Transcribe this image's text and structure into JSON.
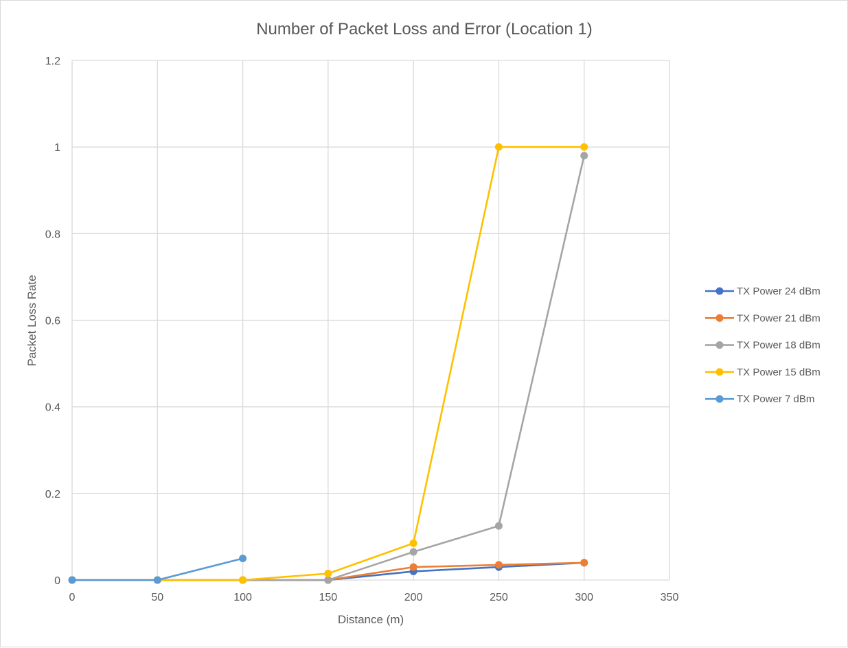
{
  "chart_data": {
    "type": "line",
    "title": "Number of Packet Loss and Error (Location 1)",
    "xlabel": "Distance (m)",
    "ylabel": "Packet Loss Rate",
    "xlim": [
      0,
      350
    ],
    "ylim": [
      0,
      1.2
    ],
    "x_ticks": [
      "0",
      "50",
      "100",
      "150",
      "200",
      "250",
      "300",
      "350"
    ],
    "y_ticks": [
      "0",
      "0.2",
      "0.4",
      "0.6",
      "0.8",
      "1",
      "1.2"
    ],
    "grid": true,
    "legend_position": "right",
    "series": [
      {
        "name": "TX Power 24 dBm",
        "color": "#4472c4",
        "x": [
          0,
          50,
          100,
          150,
          200,
          250,
          300
        ],
        "y": [
          0,
          0,
          0,
          0,
          0.02,
          0.03,
          0.04
        ]
      },
      {
        "name": "TX Power 21 dBm",
        "color": "#ed7d31",
        "x": [
          0,
          50,
          100,
          150,
          200,
          250,
          300
        ],
        "y": [
          0,
          0,
          0,
          0,
          0.03,
          0.035,
          0.04
        ]
      },
      {
        "name": "TX Power 18 dBm",
        "color": "#a5a5a5",
        "x": [
          0,
          50,
          100,
          150,
          200,
          250,
          300
        ],
        "y": [
          0,
          0,
          0,
          0,
          0.065,
          0.125,
          0.98
        ]
      },
      {
        "name": "TX Power 15 dBm",
        "color": "#ffc000",
        "x": [
          0,
          50,
          100,
          150,
          200,
          250,
          300
        ],
        "y": [
          0,
          0,
          0,
          0.015,
          0.085,
          1,
          1
        ]
      },
      {
        "name": "TX Power 7 dBm",
        "color": "#5b9bd5",
        "x": [
          0,
          50,
          100
        ],
        "y": [
          0,
          0,
          0.05
        ]
      }
    ]
  }
}
